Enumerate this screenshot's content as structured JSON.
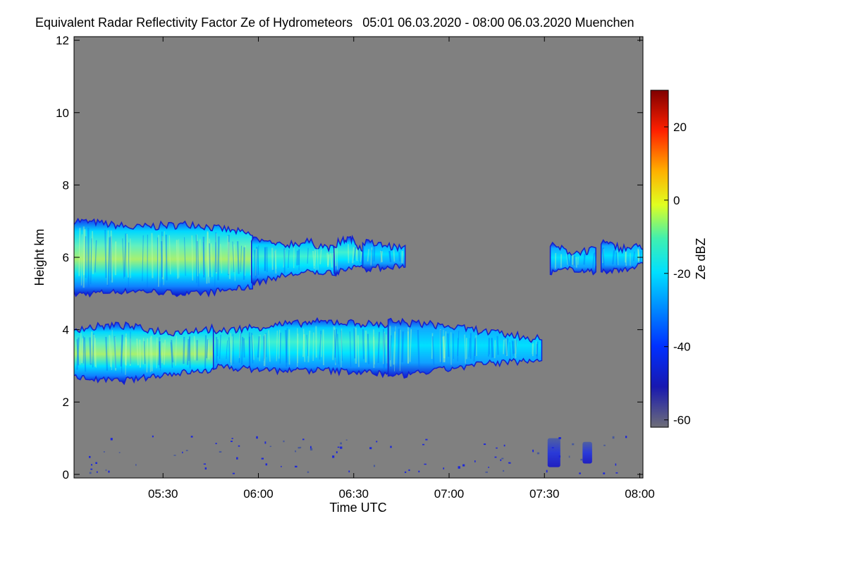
{
  "header": {
    "title": "Equivalent Radar Reflectivity Factor Ze of Hydrometeors",
    "time_range": "05:01 06.03.2020 - 08:00 06.03.2020",
    "location": "Muenchen"
  },
  "chart_data": {
    "type": "heatmap",
    "title": "Equivalent Radar Reflectivity Factor Ze of Hydrometeors",
    "xlabel": "Time UTC",
    "ylabel": "Height km",
    "x_ticks": [
      "05:30",
      "06:00",
      "06:30",
      "07:00",
      "07:30",
      "08:00"
    ],
    "x_tick_values_min": [
      329,
      359,
      389,
      419,
      449,
      479
    ],
    "xlim_min": [
      301,
      480
    ],
    "y_ticks": [
      "0",
      "2",
      "4",
      "6",
      "8",
      "10",
      "12"
    ],
    "y_tick_values": [
      0,
      2,
      4,
      6,
      8,
      10,
      12
    ],
    "ylim": [
      -0.1,
      12.1
    ],
    "background_color": "#808080",
    "colorbar": {
      "label": "Ze dBZ",
      "range": [
        -62,
        30
      ],
      "ticks": [
        "20",
        "0",
        "-20",
        "-40",
        "-60"
      ],
      "tick_values": [
        20,
        0,
        -20,
        -40,
        -60
      ],
      "colormap": [
        "#7f7f7f",
        "#0000c8",
        "#0040ff",
        "#00c8ff",
        "#30f0d0",
        "#c0ff40",
        "#ffff00",
        "#ff8000",
        "#ff0000",
        "#800000"
      ]
    },
    "layers": [
      {
        "name": "upper cloud",
        "segments": [
          {
            "start_min": 301,
            "end_min": 357,
            "top_km": [
              7.0,
              6.8,
              6.9,
              6.6
            ],
            "base_km": [
              5.0,
              5.1,
              5.0,
              5.2
            ],
            "peak_dBZ": -5
          },
          {
            "start_min": 357,
            "end_min": 383,
            "top_km": [
              6.5,
              6.3,
              6.4,
              6.2
            ],
            "base_km": [
              5.3,
              5.5,
              5.6,
              5.6
            ],
            "peak_dBZ": -10
          },
          {
            "start_min": 383,
            "end_min": 392,
            "top_km": [
              6.3,
              6.5,
              6.2
            ],
            "base_km": [
              5.6,
              5.7,
              5.8
            ],
            "peak_dBZ": -20
          },
          {
            "start_min": 392,
            "end_min": 405,
            "top_km": [
              6.4,
              6.2
            ],
            "base_km": [
              5.7,
              5.8
            ],
            "peak_dBZ": -25
          },
          {
            "start_min": 451,
            "end_min": 465,
            "top_km": [
              6.3,
              6.1,
              6.2
            ],
            "base_km": [
              5.6,
              5.7,
              5.6
            ],
            "peak_dBZ": -25
          },
          {
            "start_min": 467,
            "end_min": 480,
            "top_km": [
              6.4,
              6.2,
              6.3
            ],
            "base_km": [
              5.6,
              5.7,
              5.8
            ],
            "peak_dBZ": -25
          }
        ]
      },
      {
        "name": "lower cloud",
        "segments": [
          {
            "start_min": 301,
            "end_min": 345,
            "top_km": [
              4.0,
              4.1,
              3.9,
              4.0
            ],
            "base_km": [
              2.7,
              2.6,
              2.8,
              2.9
            ],
            "peak_dBZ": -5
          },
          {
            "start_min": 345,
            "end_min": 400,
            "top_km": [
              3.9,
              4.1,
              4.2,
              4.1
            ],
            "base_km": [
              3.0,
              2.9,
              2.9,
              2.8
            ],
            "peak_dBZ": -20
          },
          {
            "start_min": 400,
            "end_min": 448,
            "top_km": [
              4.2,
              4.1,
              3.9,
              3.7
            ],
            "base_km": [
              2.7,
              2.9,
              3.1,
              3.2
            ],
            "peak_dBZ": -25
          }
        ]
      }
    ],
    "near_ground_echoes": [
      {
        "start_min": 450,
        "end_min": 454,
        "top_km": 1.0,
        "base_km": 0.2,
        "peak_dBZ": -40
      },
      {
        "start_min": 461,
        "end_min": 464,
        "top_km": 0.9,
        "base_km": 0.3,
        "peak_dBZ": -45
      }
    ]
  }
}
